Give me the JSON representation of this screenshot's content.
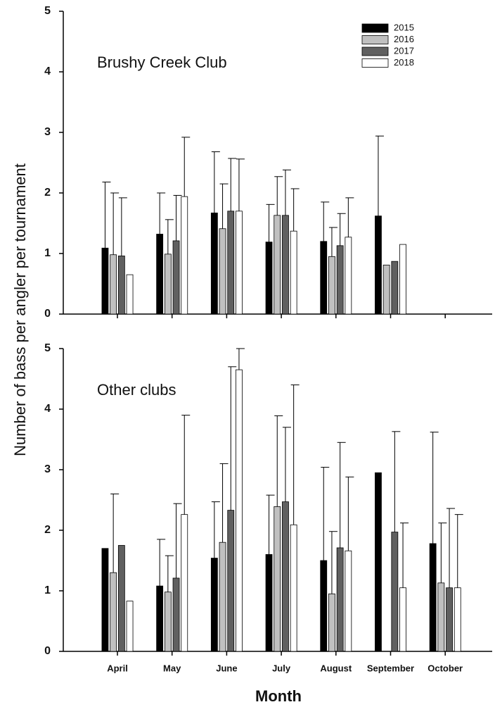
{
  "chart_data": [
    {
      "type": "bar",
      "title": "Brushy Creek Club",
      "ylabel": "Number of bass per angler per tournament",
      "categories": [
        null,
        null,
        null,
        null,
        null,
        null,
        null
      ],
      "series": [
        {
          "name": "2015",
          "color": "#000000",
          "values": [
            1.09,
            1.32,
            1.67,
            1.19,
            1.2,
            1.62,
            null
          ],
          "errors": [
            1.09,
            0.68,
            1.01,
            0.62,
            0.65,
            1.32,
            null
          ]
        },
        {
          "name": "2016",
          "color": "#c0c0c0",
          "values": [
            0.98,
            0.99,
            1.41,
            1.63,
            0.95,
            0.81,
            null
          ],
          "errors": [
            1.02,
            0.57,
            0.74,
            0.64,
            0.48,
            null,
            null
          ]
        },
        {
          "name": "2017",
          "color": "#606060",
          "values": [
            0.96,
            1.21,
            1.7,
            1.63,
            1.13,
            0.87,
            null
          ],
          "errors": [
            0.96,
            0.75,
            0.87,
            0.75,
            0.53,
            null,
            null
          ]
        },
        {
          "name": "2018",
          "color": "#ffffff",
          "values": [
            0.65,
            1.94,
            1.7,
            1.37,
            1.27,
            1.15,
            null
          ],
          "errors": [
            null,
            0.98,
            0.86,
            0.7,
            0.65,
            null,
            null
          ]
        }
      ],
      "ylim": [
        0,
        5
      ],
      "yticks": [
        0,
        1,
        2,
        3,
        4,
        5
      ],
      "legend": "upper right"
    },
    {
      "type": "bar",
      "title": "Other clubs",
      "xlabel": "Month",
      "categories": [
        "April",
        "May",
        "June",
        "July",
        "August",
        "September",
        "October"
      ],
      "series": [
        {
          "name": "2015",
          "color": "#000000",
          "values": [
            1.7,
            1.08,
            1.54,
            1.6,
            1.5,
            2.95,
            1.78
          ],
          "errors": [
            null,
            0.77,
            0.93,
            0.98,
            1.54,
            null,
            1.84
          ]
        },
        {
          "name": "2016",
          "color": "#c0c0c0",
          "values": [
            1.3,
            0.98,
            1.8,
            2.39,
            0.95,
            null,
            1.13
          ],
          "errors": [
            1.3,
            0.6,
            1.3,
            1.5,
            1.03,
            null,
            0.99
          ]
        },
        {
          "name": "2017",
          "color": "#606060",
          "values": [
            1.75,
            1.21,
            2.33,
            2.47,
            1.71,
            1.97,
            1.05
          ],
          "errors": [
            null,
            1.23,
            2.37,
            1.23,
            1.74,
            1.66,
            1.31
          ]
        },
        {
          "name": "2018",
          "color": "#ffffff",
          "values": [
            0.83,
            2.26,
            4.65,
            2.09,
            1.66,
            1.05,
            1.05
          ],
          "errors": [
            null,
            1.64,
            0.35,
            2.31,
            1.22,
            1.07,
            1.21
          ]
        }
      ],
      "ylim": [
        0,
        5
      ],
      "yticks": [
        0,
        1,
        2,
        3,
        4,
        5
      ]
    }
  ]
}
